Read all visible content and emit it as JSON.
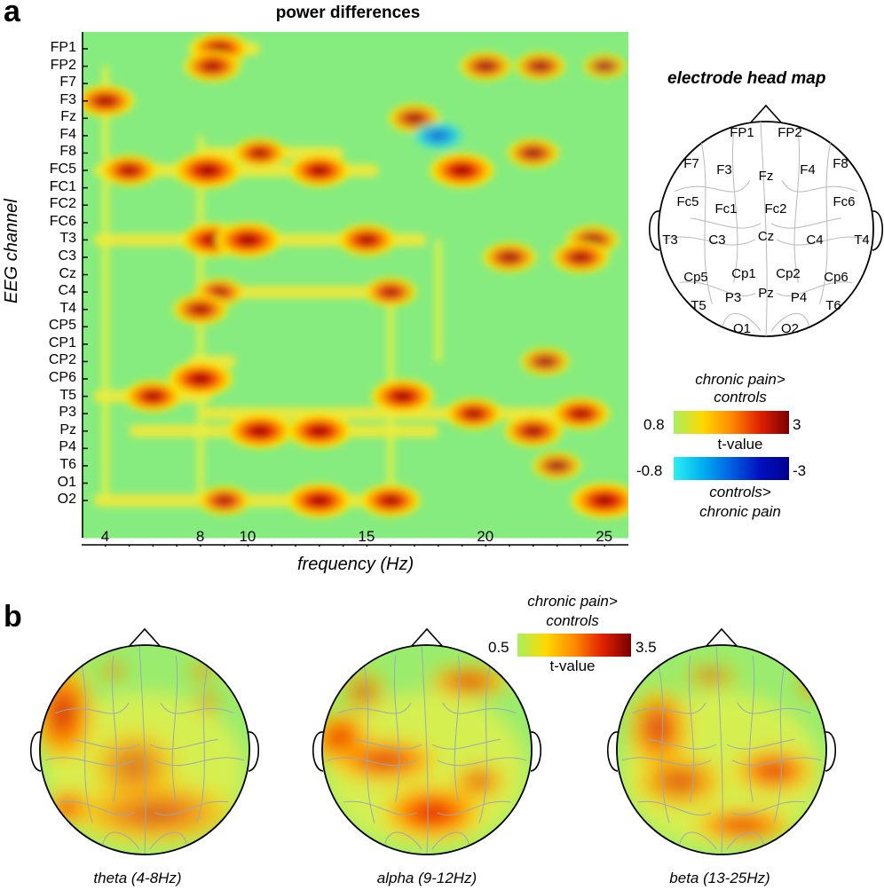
{
  "panel_a": {
    "letter": "a",
    "title": "power differences",
    "ylabel": "EEG channel",
    "xlabel": "frequency (Hz)",
    "channels": [
      "FP1",
      "FP2",
      "F7",
      "F3",
      "Fz",
      "F4",
      "F8",
      "FC5",
      "FC1",
      "FC2",
      "FC6",
      "T3",
      "C3",
      "Cz",
      "C4",
      "T4",
      "CP5",
      "CP1",
      "CP2",
      "CP6",
      "T5",
      "P3",
      "Pz",
      "P4",
      "T6",
      "O1",
      "O2"
    ],
    "xticks": [
      "4",
      "8",
      "10",
      "15",
      "20",
      "25"
    ]
  },
  "head_map": {
    "title": "electrode head map",
    "electrodes": [
      "FP1",
      "FP2",
      "F7",
      "F3",
      "Fz",
      "F4",
      "F8",
      "Fc5",
      "Fc1",
      "Fc2",
      "Fc6",
      "T3",
      "C3",
      "Cz",
      "C4",
      "T4",
      "Cp5",
      "Cp1",
      "Cp2",
      "Cp6",
      "T5",
      "P3",
      "Pz",
      "P4",
      "T6",
      "O1",
      "O2"
    ]
  },
  "legend_a": {
    "pos_label_1": "chronic pain>",
    "pos_label_2": "controls",
    "pos_min": "0.8",
    "pos_max": "3",
    "mid": "t-value",
    "neg_min": "-0.8",
    "neg_max": "-3",
    "neg_label_1": "controls>",
    "neg_label_2": "chronic pain"
  },
  "panel_b": {
    "letter": "b",
    "legend_label_1": "chronic pain>",
    "legend_label_2": "controls",
    "legend_min": "0.5",
    "legend_max": "3.5",
    "legend_mid": "t-value",
    "bands": [
      "theta (4-8Hz)",
      "alpha (9-12Hz)",
      "beta (13-25Hz)"
    ]
  },
  "colors": {
    "background_green": "#87ec7f",
    "pos_low": "#a8f060",
    "pos_mid": "#ff9a00",
    "pos_high": "#7a0000",
    "neg_low": "#2cf0f0",
    "neg_high": "#00008c"
  },
  "chart_data": {
    "type": "heatmap",
    "title": "power differences",
    "xlabel": "frequency (Hz)",
    "ylabel": "EEG channel",
    "x_range": [
      3,
      26
    ],
    "y_categories": [
      "FP1",
      "FP2",
      "F7",
      "F3",
      "Fz",
      "F4",
      "F8",
      "FC5",
      "FC1",
      "FC2",
      "FC6",
      "T3",
      "C3",
      "Cz",
      "C4",
      "T4",
      "CP5",
      "CP1",
      "CP2",
      "CP6",
      "T5",
      "P3",
      "Pz",
      "P4",
      "T6",
      "O1",
      "O2"
    ],
    "colorbar_positive": [
      0.8,
      3
    ],
    "colorbar_negative": [
      -0.8,
      -3
    ],
    "hotspots": [
      {
        "ch": "FP1",
        "f": 8.8,
        "t": 2.4
      },
      {
        "ch": "FP2",
        "f": 8.5,
        "t": 2.3
      },
      {
        "ch": "FP2",
        "f": 20,
        "t": 2.0
      },
      {
        "ch": "FP2",
        "f": 22.3,
        "t": 1.9
      },
      {
        "ch": "FP2",
        "f": 25,
        "t": 1.4
      },
      {
        "ch": "F3",
        "f": 4,
        "t": 2.4
      },
      {
        "ch": "Fz",
        "f": 17,
        "t": 2.0
      },
      {
        "ch": "F4",
        "f": 18,
        "t": -2.0
      },
      {
        "ch": "FC5",
        "f": 8.3,
        "t": 3.0
      },
      {
        "ch": "FC5",
        "f": 5,
        "t": 2.3
      },
      {
        "ch": "FC5",
        "f": 13,
        "t": 2.6
      },
      {
        "ch": "FC5",
        "f": 19,
        "t": 2.8
      },
      {
        "ch": "F8",
        "f": 10.5,
        "t": 2.1
      },
      {
        "ch": "F8",
        "f": 22,
        "t": 2.0
      },
      {
        "ch": "T3",
        "f": 8.5,
        "t": 2.7
      },
      {
        "ch": "T3",
        "f": 10,
        "t": 2.9
      },
      {
        "ch": "T3",
        "f": 15,
        "t": 2.4
      },
      {
        "ch": "T3",
        "f": 24.5,
        "t": 2.0
      },
      {
        "ch": "C3",
        "f": 21,
        "t": 2.1
      },
      {
        "ch": "C3",
        "f": 24,
        "t": 2.3
      },
      {
        "ch": "C4",
        "f": 8.8,
        "t": 1.8
      },
      {
        "ch": "C4",
        "f": 16,
        "t": 2.0
      },
      {
        "ch": "T4",
        "f": 8,
        "t": 2.2
      },
      {
        "ch": "CP6",
        "f": 8,
        "t": 2.8
      },
      {
        "ch": "CP2",
        "f": 22.5,
        "t": 1.8
      },
      {
        "ch": "T5",
        "f": 6,
        "t": 2.4
      },
      {
        "ch": "T5",
        "f": 16.5,
        "t": 2.7
      },
      {
        "ch": "P3",
        "f": 19.5,
        "t": 2.3
      },
      {
        "ch": "P3",
        "f": 24,
        "t": 2.4
      },
      {
        "ch": "Pz",
        "f": 10.5,
        "t": 2.9
      },
      {
        "ch": "Pz",
        "f": 13,
        "t": 2.8
      },
      {
        "ch": "Pz",
        "f": 22,
        "t": 2.4
      },
      {
        "ch": "T6",
        "f": 23,
        "t": 1.8
      },
      {
        "ch": "O2",
        "f": 13,
        "t": 2.8
      },
      {
        "ch": "O2",
        "f": 16,
        "t": 2.5
      },
      {
        "ch": "O2",
        "f": 25,
        "t": 3.0
      },
      {
        "ch": "O2",
        "f": 9,
        "t": 2.0
      }
    ]
  }
}
